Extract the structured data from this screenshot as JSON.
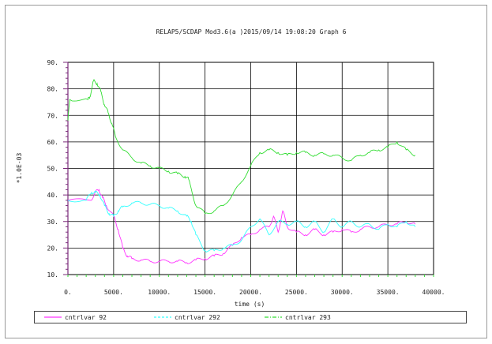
{
  "header": {
    "title": "RELAP5/SCDAP Mod3.6(a  )2015/09/14   19:08:20     Graph   6"
  },
  "colors": {
    "background": "#ffffff",
    "grid": "#000000",
    "axis": "#7a2a7a",
    "series_1": "#ff33ff",
    "series_2": "#33ffff",
    "series_3": "#33dd33"
  },
  "chart_data": {
    "type": "line",
    "title": "RELAP5/SCDAP Mod3.6(a  )2015/09/14   19:08:20     Graph   6",
    "xlabel": "time (s)",
    "ylabel": "*1.0E-03",
    "xlim": [
      0,
      40000
    ],
    "ylim": [
      10,
      90
    ],
    "grid": true,
    "legend_position": "bottom",
    "x_tick_labels": [
      "0.",
      "5000.",
      "10000.",
      "15000.",
      "20000.",
      "25000.",
      "30000.",
      "35000.",
      "40000."
    ],
    "x_tick_values": [
      0,
      5000,
      10000,
      15000,
      20000,
      25000,
      30000,
      35000,
      40000
    ],
    "y_tick_labels": [
      "10.",
      "20.",
      "30.",
      "40.",
      "50.",
      "60.",
      "70.",
      "80.",
      "90."
    ],
    "y_tick_values": [
      10,
      20,
      30,
      40,
      50,
      60,
      70,
      80,
      90
    ],
    "series": [
      {
        "name": "cntrlvar 92",
        "color": "#ff33ff",
        "x": [
          0,
          2500,
          3000,
          3400,
          3800,
          4200,
          5000,
          5500,
          6000,
          6500,
          7000,
          8000,
          9000,
          10000,
          11000,
          12000,
          13000,
          14000,
          15000,
          16000,
          17000,
          18000,
          19000,
          20000,
          21000,
          22000,
          22500,
          23000,
          23500,
          24000,
          25000,
          26000,
          27000,
          28000,
          29000,
          30000,
          31000,
          32000,
          33000,
          34000,
          35000,
          36000,
          37000,
          38000
        ],
        "y": [
          38,
          38,
          41,
          42,
          39,
          36,
          32,
          27,
          20,
          17,
          16,
          15.5,
          15,
          15,
          15,
          15,
          14.5,
          15.5,
          16,
          17,
          18,
          21,
          24,
          25,
          27,
          28,
          32,
          26,
          34,
          28,
          26,
          25,
          27,
          25,
          26,
          27,
          26,
          27,
          28,
          28,
          29,
          29,
          30,
          29
        ]
      },
      {
        "name": "cntrlvar 292",
        "color": "#33ffff",
        "x": [
          0,
          2000,
          2600,
          3000,
          3500,
          4000,
          4500,
          5000,
          5500,
          6000,
          7000,
          8000,
          9000,
          10000,
          11000,
          12000,
          13000,
          13500,
          14000,
          15000,
          16000,
          17000,
          18000,
          19000,
          20000,
          21000,
          22000,
          23000,
          24000,
          25000,
          26000,
          27000,
          28000,
          29000,
          30000,
          31000,
          32000,
          33000,
          34000,
          35000,
          36000,
          37000,
          38000
        ],
        "y": [
          38,
          38,
          41,
          41,
          40,
          36,
          33,
          32,
          34,
          35.5,
          37,
          37,
          36.5,
          36,
          35,
          34,
          32,
          30,
          25,
          19,
          19,
          20,
          21,
          23,
          28,
          31,
          25,
          30,
          29,
          30,
          28,
          30,
          26,
          31,
          28,
          30,
          28,
          29,
          27,
          29,
          28,
          30,
          28
        ]
      },
      {
        "name": "cntrlvar 293",
        "color": "#33dd33",
        "x": [
          0,
          200,
          2200,
          2400,
          2800,
          3200,
          3600,
          4000,
          4400,
          4800,
          5200,
          6000,
          7000,
          8000,
          9000,
          10000,
          11000,
          12000,
          12800,
          13200,
          14000,
          15000,
          16000,
          17000,
          18000,
          19000,
          20000,
          21000,
          22000,
          23000,
          24000,
          25000,
          26000,
          27000,
          28000,
          29000,
          30000,
          31000,
          32000,
          33000,
          34000,
          35000,
          36000,
          37000,
          38000
        ],
        "y": [
          68,
          76,
          76,
          77,
          83,
          82,
          79,
          74,
          71,
          67,
          62,
          57,
          54,
          52,
          51,
          50,
          49,
          48,
          47,
          46,
          36,
          33,
          34,
          36,
          40,
          45,
          51,
          56,
          57,
          56,
          55,
          56,
          56,
          55,
          55.5,
          55,
          54,
          53,
          55,
          56,
          57,
          58,
          60,
          57,
          55
        ]
      }
    ]
  }
}
